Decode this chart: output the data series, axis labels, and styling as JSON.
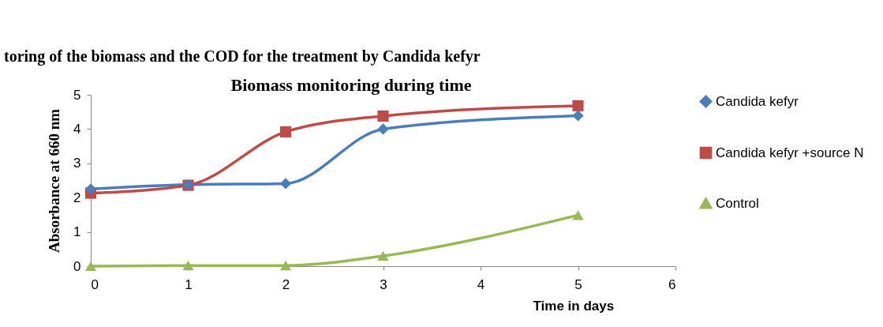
{
  "chart_data": {
    "type": "line",
    "title": "Biomass monitoring during time",
    "xlabel": "Time in days",
    "ylabel": "Absorbance at 660 nm",
    "annotations": [
      "toring of the biomass and the COD for the treatment by Candida kefyr"
    ],
    "x": [
      0,
      1,
      2,
      3,
      5
    ],
    "xlim": [
      0,
      6
    ],
    "xticks": [
      0,
      1,
      2,
      3,
      4,
      5,
      6
    ],
    "ylim": [
      0,
      5
    ],
    "yticks": [
      0,
      1,
      2,
      3,
      4,
      5
    ],
    "grid": false,
    "legend": "right",
    "line_style": "solid",
    "series": [
      {
        "name": "Candida kefyr",
        "color": "#4a7ebb",
        "marker": "diamond",
        "values": [
          2.25,
          2.38,
          2.41,
          4.0,
          4.39
        ]
      },
      {
        "name": "Candida kefyr +source N",
        "color": "#be4b48",
        "marker": "square",
        "values": [
          2.13,
          2.36,
          3.92,
          4.38,
          4.68
        ]
      },
      {
        "name": "Control",
        "color": "#98b954",
        "marker": "triangle",
        "values": [
          0.0,
          0.02,
          0.02,
          0.3,
          1.49
        ]
      }
    ]
  }
}
